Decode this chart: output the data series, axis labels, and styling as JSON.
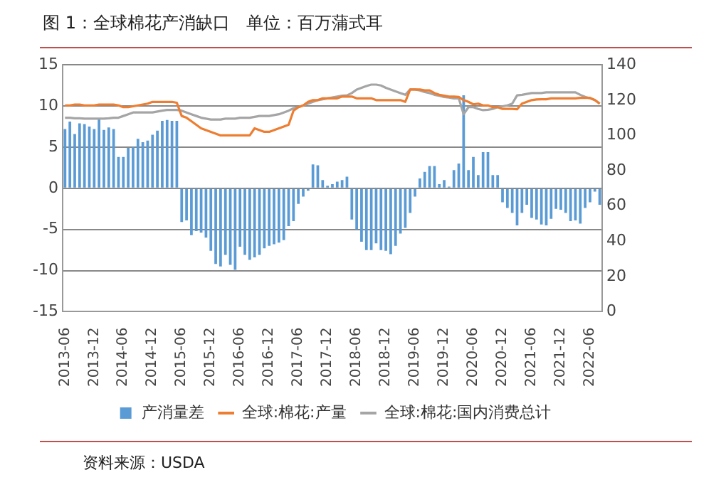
{
  "chart_data": {
    "type": "bar",
    "title": "图 1：全球棉花产消缺口   单位：百万蒲式耳",
    "annotations": [
      "资料来源：USDA"
    ],
    "categories": [
      "2013-06",
      null,
      null,
      null,
      null,
      null,
      "2013-12",
      null,
      null,
      null,
      null,
      null,
      "2014-06",
      null,
      null,
      null,
      null,
      null,
      "2014-12",
      null,
      null,
      null,
      null,
      null,
      "2015-06",
      null,
      null,
      null,
      null,
      null,
      "2015-12",
      null,
      null,
      null,
      null,
      null,
      "2016-06",
      null,
      null,
      null,
      null,
      null,
      "2016-12",
      null,
      null,
      null,
      null,
      null,
      "2017-06",
      null,
      null,
      null,
      null,
      null,
      "2017-12",
      null,
      null,
      null,
      null,
      null,
      "2018-06",
      null,
      null,
      null,
      null,
      null,
      "2018-12",
      null,
      null,
      null,
      null,
      null,
      "2019-06",
      null,
      null,
      null,
      null,
      null,
      "2019-12",
      null,
      null,
      null,
      null,
      null,
      "2020-06",
      null,
      null,
      null,
      null,
      null,
      "2020-12",
      null,
      null,
      null,
      null,
      null,
      "2021-06",
      null,
      null,
      null,
      null,
      null,
      "2021-12",
      null,
      null,
      null,
      null,
      null,
      "2022-06",
      null,
      null
    ],
    "series": [
      {
        "name": "产消量差",
        "color": "#5b9bd5",
        "values": [
          7.2,
          8.1,
          6.6,
          7.9,
          7.8,
          7.5,
          7.2,
          8.4,
          7.1,
          7.4,
          7.2,
          3.8,
          3.8,
          4.9,
          5.0,
          6.0,
          5.6,
          5.8,
          6.5,
          7.0,
          8.2,
          8.3,
          8.2,
          8.2,
          -4.1,
          -3.9,
          -5.7,
          -5.2,
          -5.4,
          -6.0,
          -7.6,
          -9.2,
          -9.5,
          -8.1,
          -9.3,
          -9.9,
          -7.1,
          -8.1,
          -8.7,
          -8.4,
          -8.1,
          -7.3,
          -7.0,
          -6.8,
          -6.6,
          -6.3,
          -4.6,
          -4.0,
          -1.9,
          -1.0,
          -0.3,
          2.9,
          2.8,
          1.0,
          0.3,
          0.5,
          0.8,
          1.0,
          1.4,
          -3.8,
          -5.0,
          -6.5,
          -7.5,
          -7.5,
          -6.7,
          -7.5,
          -7.6,
          -8.0,
          -7.0,
          -5.5,
          -4.8,
          -3.0,
          -1.0,
          1.2,
          2.0,
          2.7,
          2.7,
          0.5,
          1.0,
          0.2,
          2.2,
          3.0,
          11.3,
          2.2,
          3.8,
          1.6,
          4.4,
          4.4,
          1.6,
          1.6,
          -1.7,
          -2.4,
          -3.0,
          -4.5,
          -3.0,
          -2.0,
          -3.6,
          -3.8,
          -4.4,
          -4.5,
          -3.7,
          -2.5,
          -2.6,
          -3.0,
          -4.0,
          -3.9,
          -4.3,
          -2.4,
          -1.7,
          -0.4,
          -2.0
        ]
      },
      {
        "name": "全球:棉花:产量",
        "type": "line",
        "axis": "y2",
        "color": "#ed7d31",
        "values": [
          117,
          117,
          117.5,
          117.5,
          117,
          117,
          117,
          117.5,
          117.5,
          117.5,
          117.5,
          117,
          116,
          116,
          116.5,
          117,
          117.5,
          118,
          119,
          119,
          119,
          119,
          119,
          118.5,
          111,
          110,
          108,
          106,
          104,
          103,
          102,
          101,
          100,
          100,
          100,
          100,
          100,
          100,
          100,
          104,
          103,
          102,
          102,
          103,
          104,
          105,
          106,
          114,
          116,
          117,
          119,
          120,
          120,
          121,
          121,
          121,
          121,
          122,
          122,
          122,
          121,
          121,
          121,
          121,
          120,
          120,
          120,
          120,
          120,
          120,
          119,
          126,
          126,
          126,
          125.5,
          125.5,
          124,
          123,
          122.5,
          122,
          122,
          121.8,
          120,
          119,
          117.6,
          118,
          117,
          117,
          116,
          116,
          115,
          115,
          115,
          114.8,
          118,
          119,
          120,
          120.4,
          120.5,
          120.5,
          121,
          121,
          121,
          121,
          121,
          121,
          121.3,
          121.3,
          121.3,
          120,
          118
        ]
      },
      {
        "name": "全球:棉花:国内消费总计",
        "type": "line",
        "axis": "y2",
        "color": "#a5a5a5",
        "values": [
          110,
          110,
          109.7,
          109.7,
          109.5,
          109.5,
          109.5,
          109.5,
          109.5,
          109.7,
          110,
          110,
          111,
          112,
          113,
          113,
          113,
          113,
          113,
          113.5,
          114,
          114.4,
          114.4,
          114.4,
          114,
          113,
          112,
          111,
          110,
          109.5,
          109,
          109,
          109,
          109.5,
          109.5,
          109.5,
          110,
          110,
          110,
          110.5,
          111,
          111,
          111,
          111.5,
          112,
          113,
          114,
          115.4,
          116,
          117,
          118,
          119,
          120,
          120.5,
          121,
          121.5,
          122,
          122.5,
          122.7,
          124,
          126,
          127,
          128,
          128.8,
          128.8,
          128.3,
          127,
          126,
          125,
          124,
          123,
          126,
          126,
          125.5,
          124.6,
          124,
          123,
          122.5,
          121.8,
          121.5,
          121,
          121,
          112,
          116,
          116,
          115,
          114.3,
          114.5,
          115,
          116,
          116.5,
          117,
          118,
          122.7,
          123,
          123.5,
          124,
          124,
          124,
          124.4,
          124.4,
          124.4,
          124.4,
          124.4,
          124.4,
          124.4,
          123,
          121.8,
          121,
          120,
          118
        ]
      }
    ],
    "ylim": [
      -15,
      15
    ],
    "yticks": [
      -15,
      -10,
      -5,
      0,
      5,
      10,
      15
    ],
    "y2lim": [
      0,
      140
    ],
    "y2ticks": [
      0,
      20,
      40,
      60,
      80,
      100,
      120,
      140
    ],
    "grid": "y",
    "legend": "bottom",
    "marker": "none",
    "line_style": "solid"
  }
}
